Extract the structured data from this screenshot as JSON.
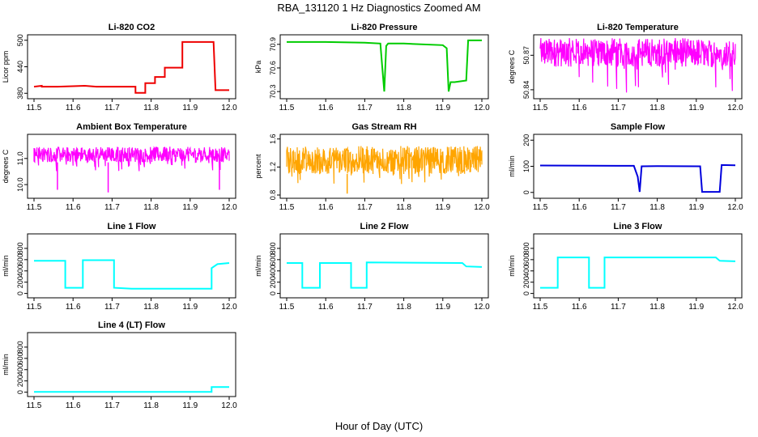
{
  "figure": {
    "title": "RBA_131120  1 Hz Diagnostics Zoomed AM",
    "xlabel": "Hour of Day (UTC)"
  },
  "colors": {
    "co2": "#ee0000",
    "pressure": "#00cc00",
    "temperature": "#ff00ff",
    "rh": "#ffa500",
    "sample_flow": "#0000dd",
    "line_flow": "#00ffff"
  },
  "chart_data": [
    {
      "type": "line",
      "title": "Li-820 CO2",
      "ylabel": "Licor ppm",
      "xlim": [
        11.5,
        12.0
      ],
      "ylim": [
        375,
        505
      ],
      "xticks": [
        "11.5",
        "11.6",
        "11.7",
        "11.8",
        "11.9",
        "12.0"
      ],
      "yticks": [
        "380",
        "440",
        "500"
      ],
      "ytick_values": [
        380,
        440,
        500
      ],
      "series": [
        {
          "color_key": "co2",
          "x": [
            11.5,
            11.52,
            11.52,
            11.56,
            11.6,
            11.63,
            11.66,
            11.7,
            11.76,
            11.76,
            11.785,
            11.785,
            11.81,
            11.81,
            11.835,
            11.835,
            11.88,
            11.88,
            11.96,
            11.965,
            11.965,
            12.0
          ],
          "y": [
            395,
            397,
            395,
            395,
            396,
            397,
            395,
            395,
            395,
            381,
            381,
            403,
            403,
            417,
            417,
            438,
            438,
            496,
            496,
            388,
            387,
            387
          ]
        }
      ]
    },
    {
      "type": "line",
      "title": "Li-820 Pressure",
      "ylabel": "kPa",
      "xlim": [
        11.5,
        12.0
      ],
      "ylim": [
        70.25,
        70.98
      ],
      "xticks": [
        "11.5",
        "11.6",
        "11.7",
        "11.8",
        "11.9",
        "12.0"
      ],
      "yticks": [
        "70.3",
        "70.6",
        "70.9"
      ],
      "ytick_values": [
        70.3,
        70.6,
        70.9
      ],
      "series": [
        {
          "color_key": "pressure",
          "x": [
            11.5,
            11.6,
            11.7,
            11.74,
            11.745,
            11.75,
            11.755,
            11.76,
            11.8,
            11.9,
            11.91,
            11.915,
            11.92,
            11.925,
            11.93,
            11.96,
            11.965,
            11.97,
            12.0
          ],
          "y": [
            70.93,
            70.93,
            70.92,
            70.91,
            70.6,
            70.3,
            70.88,
            70.91,
            70.91,
            70.89,
            70.85,
            70.3,
            70.42,
            70.42,
            70.42,
            70.44,
            70.95,
            70.95,
            70.95
          ]
        }
      ]
    },
    {
      "type": "line",
      "title": "Li-820 Temperature",
      "ylabel": "degrees C",
      "xlim": [
        11.5,
        12.0
      ],
      "ylim": [
        50.835,
        50.885
      ],
      "xticks": [
        "11.5",
        "11.6",
        "11.7",
        "11.8",
        "11.9",
        "12.0"
      ],
      "yticks": [
        "50.84",
        "50.87"
      ],
      "ytick_values": [
        50.84,
        50.87
      ],
      "note_key": "band",
      "series": [
        {
          "color_key": "temperature",
          "band": [
            11.5,
            12.0,
            50.86,
            50.885,
            50.837
          ]
        }
      ]
    },
    {
      "type": "line",
      "title": "Ambient Box Temperature",
      "ylabel": "degrees C",
      "xlim": [
        11.5,
        12.0
      ],
      "ylim": [
        9.6,
        11.8
      ],
      "xticks": [
        "11.5",
        "11.6",
        "11.7",
        "11.8",
        "11.9",
        "12.0"
      ],
      "yticks": [
        "10.0",
        "11.0"
      ],
      "ytick_values": [
        10.0,
        11.0
      ],
      "series": [
        {
          "color_key": "temperature",
          "band": [
            11.5,
            12.0,
            10.85,
            11.45,
            10.5
          ],
          "spikes_x": [
            11.56,
            11.69,
            11.975
          ],
          "spikes_y": [
            9.8,
            9.7,
            9.8
          ]
        }
      ]
    },
    {
      "type": "line",
      "title": "Gas Stream RH",
      "ylabel": "percent",
      "xlim": [
        11.5,
        12.0
      ],
      "ylim": [
        0.8,
        1.62
      ],
      "xticks": [
        "11.5",
        "11.6",
        "11.7",
        "11.8",
        "11.9",
        "12.0"
      ],
      "yticks": [
        "0.8",
        "1.2",
        "1.6"
      ],
      "ytick_values": [
        0.8,
        1.2,
        1.6
      ],
      "series": [
        {
          "color_key": "rh",
          "band": [
            11.5,
            12.0,
            1.1,
            1.5,
            0.95
          ],
          "spikes_x": [
            11.655
          ],
          "spikes_y": [
            0.82
          ]
        }
      ]
    },
    {
      "type": "line",
      "title": "Sample Flow",
      "ylabel": "ml/min",
      "xlim": [
        11.5,
        12.0
      ],
      "ylim": [
        -10,
        210
      ],
      "xticks": [
        "11.5",
        "11.6",
        "11.7",
        "11.8",
        "11.9",
        "12.0"
      ],
      "yticks": [
        "0",
        "100",
        "200"
      ],
      "ytick_values": [
        0,
        100,
        200
      ],
      "series": [
        {
          "color_key": "sample_flow",
          "x": [
            11.5,
            11.74,
            11.75,
            11.755,
            11.76,
            11.8,
            11.91,
            11.915,
            11.96,
            11.965,
            12.0
          ],
          "y": [
            103,
            102,
            60,
            2,
            100,
            101,
            100,
            2,
            2,
            105,
            104
          ]
        }
      ]
    },
    {
      "type": "line",
      "title": "Line 1 Flow",
      "ylabel": "ml/min",
      "xlim": [
        11.5,
        12.0
      ],
      "ylim": [
        -20,
        1000
      ],
      "xticks": [
        "11.5",
        "11.6",
        "11.7",
        "11.8",
        "11.9",
        "12.0"
      ],
      "yticks": [
        "0",
        "200",
        "400",
        "600",
        "800"
      ],
      "ytick_values": [
        0,
        200,
        400,
        600,
        800
      ],
      "series": [
        {
          "color_key": "line_flow",
          "x": [
            11.5,
            11.58,
            11.58,
            11.625,
            11.625,
            11.705,
            11.705,
            11.75,
            11.955,
            11.955,
            11.97,
            12.0
          ],
          "y": [
            580,
            580,
            100,
            100,
            590,
            590,
            100,
            85,
            85,
            450,
            520,
            540
          ]
        }
      ]
    },
    {
      "type": "line",
      "title": "Line 2 Flow",
      "ylabel": "ml/min",
      "xlim": [
        11.5,
        12.0
      ],
      "ylim": [
        -20,
        1000
      ],
      "xticks": [
        "11.5",
        "11.6",
        "11.7",
        "11.8",
        "11.9",
        "12.0"
      ],
      "yticks": [
        "0",
        "200",
        "400",
        "600",
        "800"
      ],
      "ytick_values": [
        0,
        200,
        400,
        600,
        800
      ],
      "series": [
        {
          "color_key": "line_flow",
          "x": [
            11.5,
            11.54,
            11.54,
            11.585,
            11.585,
            11.665,
            11.665,
            11.705,
            11.705,
            11.95,
            11.96,
            12.0
          ],
          "y": [
            540,
            540,
            100,
            100,
            540,
            540,
            100,
            100,
            550,
            540,
            480,
            470
          ]
        }
      ]
    },
    {
      "type": "line",
      "title": "Line 3 Flow",
      "ylabel": "ml/min",
      "xlim": [
        11.5,
        12.0
      ],
      "ylim": [
        -20,
        1000
      ],
      "xticks": [
        "11.5",
        "11.6",
        "11.7",
        "11.8",
        "11.9",
        "12.0"
      ],
      "yticks": [
        "0",
        "200",
        "400",
        "600",
        "800"
      ],
      "ytick_values": [
        0,
        200,
        400,
        600,
        800
      ],
      "series": [
        {
          "color_key": "line_flow",
          "x": [
            11.5,
            11.545,
            11.545,
            11.625,
            11.625,
            11.665,
            11.665,
            11.95,
            11.96,
            12.0
          ],
          "y": [
            100,
            100,
            640,
            640,
            100,
            100,
            640,
            640,
            580,
            570
          ]
        }
      ]
    },
    {
      "type": "line",
      "title": "Line 4 (LT) Flow",
      "ylabel": "ml/min",
      "xlim": [
        11.5,
        12.0
      ],
      "ylim": [
        -20,
        1000
      ],
      "xticks": [
        "11.5",
        "11.6",
        "11.7",
        "11.8",
        "11.9",
        "12.0"
      ],
      "yticks": [
        "0",
        "200",
        "400",
        "600",
        "800"
      ],
      "ytick_values": [
        0,
        200,
        400,
        600,
        800
      ],
      "series": [
        {
          "color_key": "line_flow",
          "x": [
            11.5,
            11.955,
            11.955,
            12.0
          ],
          "y": [
            5,
            5,
            90,
            90
          ]
        }
      ]
    }
  ]
}
